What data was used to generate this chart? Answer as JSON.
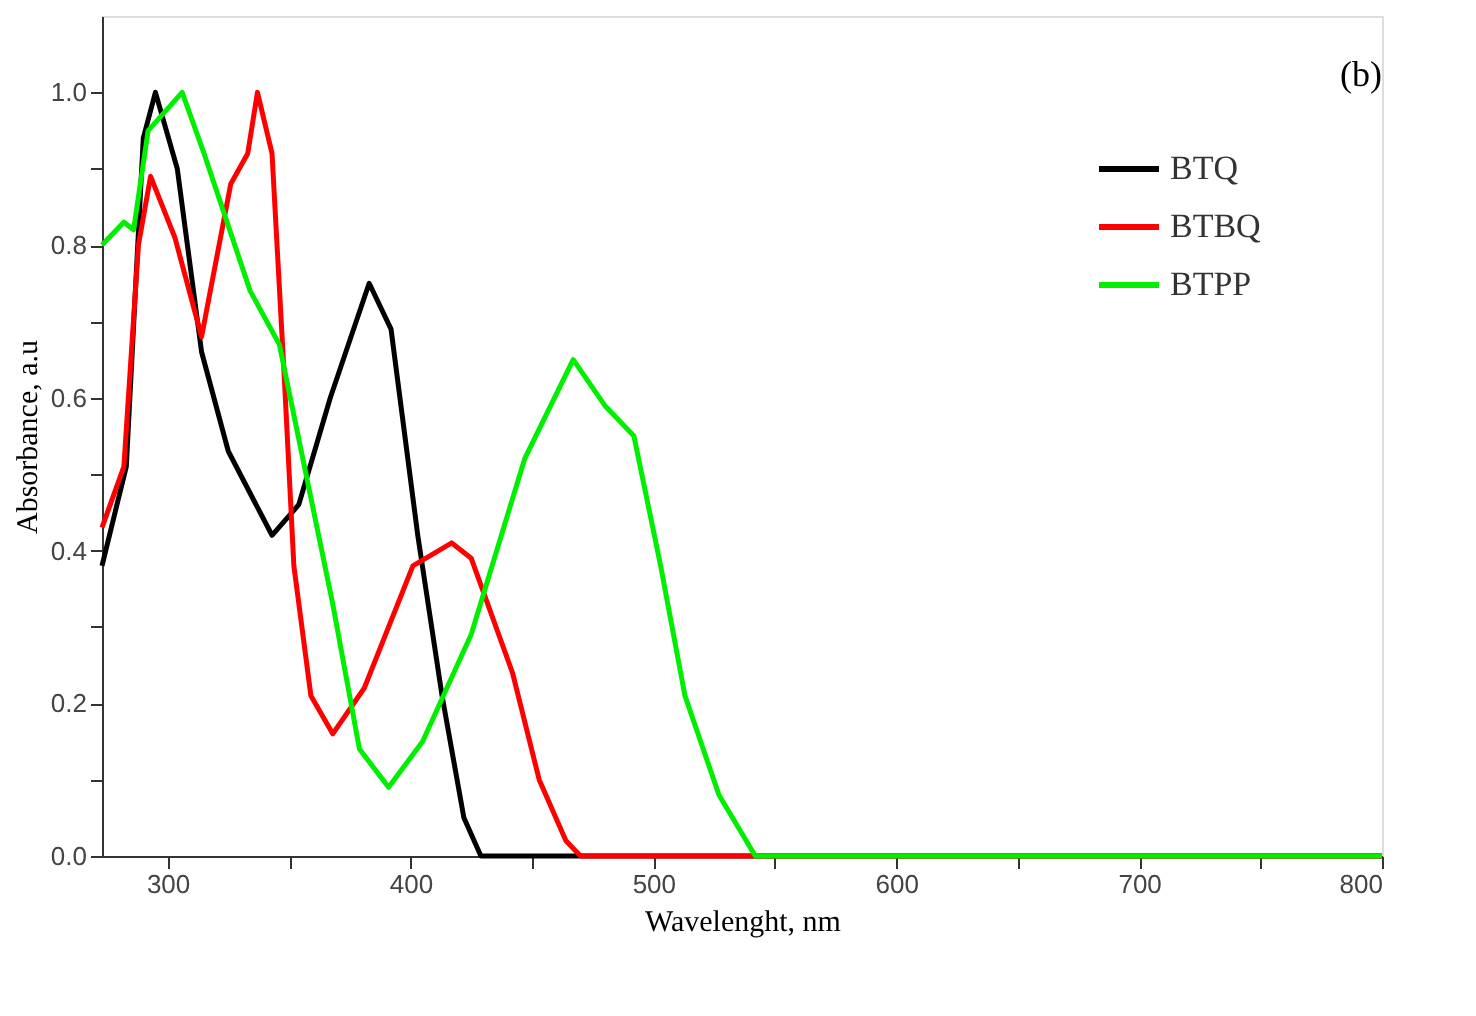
{
  "chart_data": {
    "type": "line",
    "xlabel": "Wavelenght, nm",
    "ylabel": "Absorbance, a.u",
    "annotations": [
      "(b)"
    ],
    "xlim": [
      273,
      800
    ],
    "ylim": [
      0,
      1.1
    ],
    "xticks": [
      300,
      {
        "value": 350,
        "label": null
      },
      400,
      {
        "value": 450,
        "label": null
      },
      500,
      {
        "value": 550,
        "label": null
      },
      600,
      {
        "value": 650,
        "label": null
      },
      700,
      {
        "value": 750,
        "label": null
      },
      800
    ],
    "yticks": [
      {
        "value": 0,
        "label": "0.0"
      },
      {
        "value": 0.1,
        "label": null
      },
      0.2,
      {
        "value": 0.3,
        "label": null
      },
      0.4,
      {
        "value": 0.5,
        "label": null
      },
      0.6,
      {
        "value": 0.7,
        "label": null
      },
      0.8,
      {
        "value": 0.9,
        "label": null
      },
      {
        "value": 1.0,
        "label": "1.0"
      }
    ],
    "grid": false,
    "legend": "top right",
    "marker": "none",
    "line_style": "solid",
    "series": [
      {
        "name": "BTQ",
        "color": "#000000",
        "x": [
          273,
          283,
          290,
          295,
          304,
          314,
          325,
          343,
          354,
          367,
          383,
          392,
          403,
          413,
          422,
          429,
          500,
          600,
          700,
          800
        ],
        "values": [
          0.38,
          0.51,
          0.94,
          1.0,
          0.9,
          0.66,
          0.53,
          0.42,
          0.46,
          0.6,
          0.75,
          0.69,
          0.42,
          0.21,
          0.05,
          0,
          0,
          0,
          0,
          0
        ]
      },
      {
        "name": "BTBQ",
        "color": "#ff0000",
        "x": [
          273,
          282,
          288,
          293,
          303,
          314,
          326,
          333,
          337,
          343,
          348,
          352,
          359,
          368,
          381,
          401,
          417,
          425,
          442,
          453,
          464,
          470,
          600,
          700,
          800
        ],
        "values": [
          0.43,
          0.51,
          0.8,
          0.89,
          0.81,
          0.68,
          0.88,
          0.92,
          1.0,
          0.92,
          0.63,
          0.38,
          0.21,
          0.16,
          0.22,
          0.38,
          0.41,
          0.39,
          0.24,
          0.1,
          0.02,
          0,
          0,
          0,
          0
        ]
      },
      {
        "name": "BTPP",
        "color": "#00ee00",
        "x": [
          273,
          282,
          286,
          292,
          306,
          315,
          334,
          346,
          357,
          368,
          379,
          391,
          405,
          425,
          447,
          467,
          480,
          492,
          503,
          513,
          527,
          542,
          600,
          700,
          800
        ],
        "values": [
          0.8,
          0.83,
          0.82,
          0.95,
          1.0,
          0.92,
          0.74,
          0.67,
          0.5,
          0.33,
          0.14,
          0.09,
          0.15,
          0.29,
          0.52,
          0.65,
          0.59,
          0.55,
          0.38,
          0.21,
          0.08,
          0,
          0,
          0,
          0
        ]
      }
    ]
  }
}
